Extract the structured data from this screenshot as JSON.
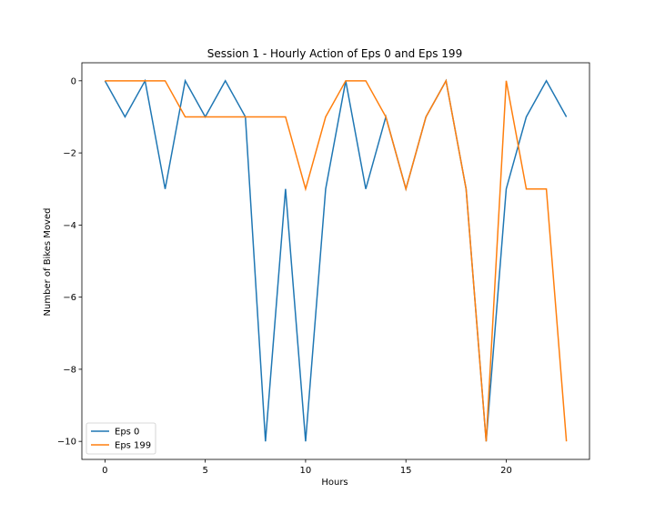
{
  "chart_data": {
    "type": "line",
    "title": "Session 1 - Hourly Action of Eps 0 and Eps 199",
    "xlabel": "Hours",
    "ylabel": "Number of Bikes Moved",
    "xlim": [
      -1.15,
      24.15
    ],
    "ylim": [
      -10.5,
      0.5
    ],
    "xticks": [
      0,
      5,
      10,
      15,
      20
    ],
    "yticks": [
      0,
      -2,
      -4,
      -6,
      -8,
      -10
    ],
    "xtick_labels": [
      "0",
      "5",
      "10",
      "15",
      "20"
    ],
    "ytick_labels": [
      "0",
      "−2",
      "−4",
      "−6",
      "−8",
      "−10"
    ],
    "legend_position": "lower-left",
    "grid": false,
    "x": [
      0,
      1,
      2,
      3,
      4,
      5,
      6,
      7,
      8,
      9,
      10,
      11,
      12,
      13,
      14,
      15,
      16,
      17,
      18,
      19,
      20,
      21,
      22,
      23
    ],
    "series": [
      {
        "name": "Eps 0",
        "color": "#1f77b4",
        "values": [
          0,
          -1,
          0,
          -3,
          0,
          -1,
          0,
          -1,
          -10,
          -3,
          -10,
          -3,
          0,
          -3,
          -1,
          -3,
          -1,
          0,
          -3,
          -10,
          -3,
          -1,
          0,
          -1
        ]
      },
      {
        "name": "Eps 199",
        "color": "#ff7f0e",
        "values": [
          0,
          0,
          0,
          0,
          -1,
          -1,
          -1,
          -1,
          -1,
          -1,
          -3,
          -1,
          0,
          0,
          -1,
          -3,
          -1,
          0,
          -3,
          -10,
          0,
          -3,
          -3,
          -10
        ]
      }
    ]
  }
}
